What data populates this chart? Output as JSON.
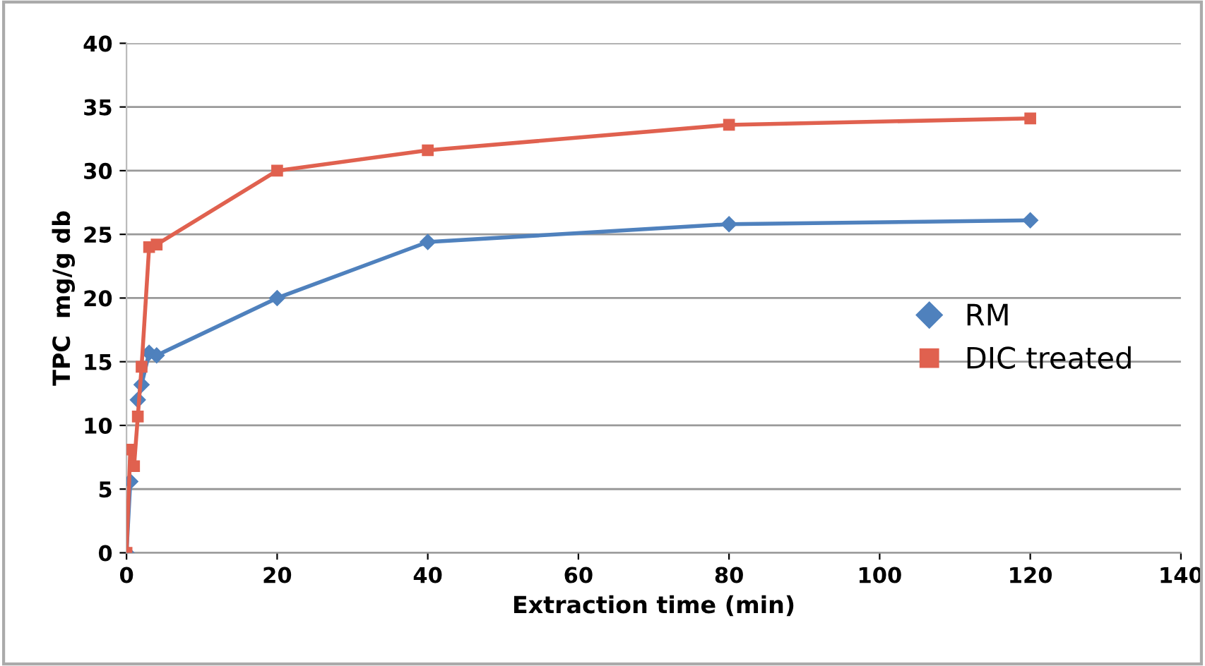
{
  "chart_data": {
    "type": "line",
    "xlabel": "Extraction time (min)",
    "ylabel": "TPC  mg/g db",
    "xlim": [
      0,
      140
    ],
    "xticks": [
      0,
      20,
      40,
      60,
      80,
      100,
      120,
      140
    ],
    "ylim": [
      0,
      40
    ],
    "yticks": [
      0,
      5,
      10,
      15,
      20,
      25,
      30,
      35,
      40
    ],
    "grid": "y",
    "legend": "right",
    "series": [
      {
        "name": "RM",
        "color": "#4f81bd",
        "marker": "diamond",
        "x": [
          0,
          0.5,
          1,
          1.5,
          2,
          3,
          4,
          20,
          40,
          80,
          120
        ],
        "values": [
          0,
          5.6,
          null,
          12,
          13.2,
          15.7,
          15.5,
          20,
          24.4,
          25.8,
          26.1
        ]
      },
      {
        "name": "DIC treated",
        "color": "#e0614f",
        "marker": "square",
        "x": [
          0,
          0.5,
          1,
          1.5,
          2,
          3,
          4,
          20,
          40,
          80,
          120
        ],
        "values": [
          0,
          8.1,
          6.8,
          10.7,
          14.6,
          24,
          24.2,
          30,
          31.6,
          33.6,
          34.1
        ]
      }
    ]
  }
}
